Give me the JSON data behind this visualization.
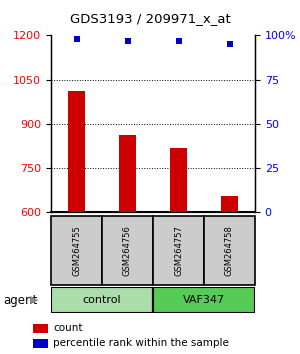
{
  "title": "GDS3193 / 209971_x_at",
  "samples": [
    "GSM264755",
    "GSM264756",
    "GSM264757",
    "GSM264758"
  ],
  "count_values": [
    1010,
    862,
    820,
    655
  ],
  "percentile_values": [
    98,
    97,
    97,
    95
  ],
  "ylim_left": [
    600,
    1200
  ],
  "ylim_right": [
    0,
    100
  ],
  "yticks_left": [
    600,
    750,
    900,
    1050,
    1200
  ],
  "yticks_right": [
    0,
    25,
    50,
    75,
    100
  ],
  "bar_color": "#cc0000",
  "dot_color": "#0000cc",
  "bar_bottom": 600,
  "grid_yticks": [
    750,
    900,
    1050
  ],
  "control_color": "#aaddaa",
  "vaf_color": "#55cc55",
  "sample_box_color": "#cccccc",
  "legend_count_label": "count",
  "legend_pct_label": "percentile rank within the sample"
}
